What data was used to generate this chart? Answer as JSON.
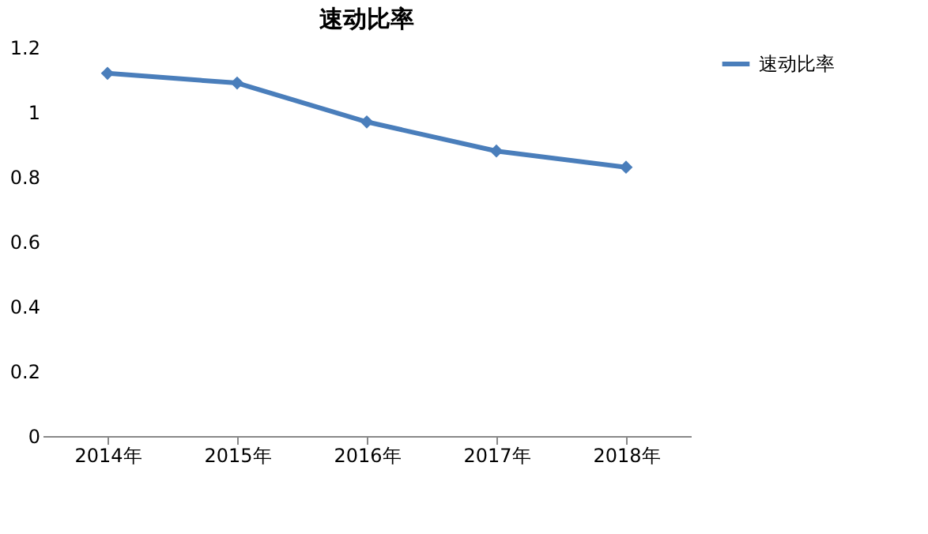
{
  "chart_data": {
    "type": "line",
    "title": "速动比率",
    "categories": [
      "2014年",
      "2015年",
      "2016年",
      "2017年",
      "2018年"
    ],
    "series": [
      {
        "name": "速动比率",
        "color": "#4a7ebb",
        "values": [
          1.12,
          1.09,
          0.97,
          0.88,
          0.83
        ]
      }
    ],
    "ylim": [
      0,
      1.2
    ],
    "yticks": [
      0,
      0.2,
      0.4,
      0.6,
      0.8,
      1,
      1.2
    ],
    "grid": false,
    "legend": "right",
    "marker": "diamond",
    "line_style": "solid"
  }
}
